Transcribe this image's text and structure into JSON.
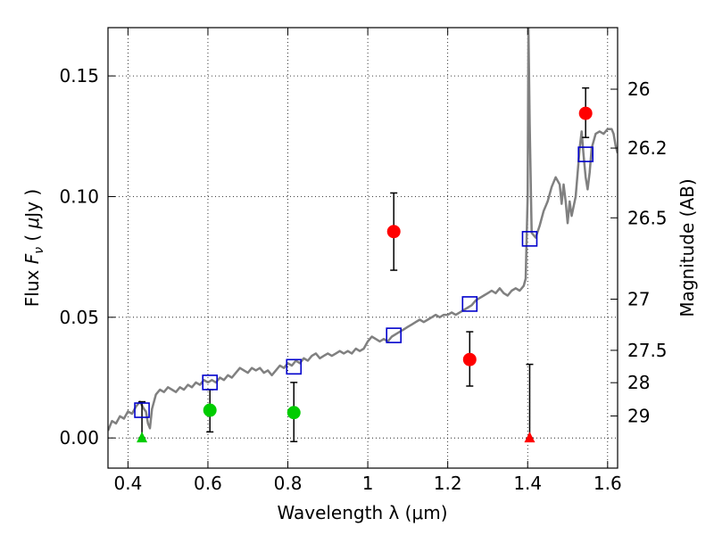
{
  "chart_data": {
    "type": "scatter",
    "xlabel": "Wavelength  λ (μm)",
    "ylabel_parts": [
      "Flux  ",
      "F",
      "ν",
      "  ( ",
      "μ",
      "Jy )"
    ],
    "y2label": "Magnitude (AB)",
    "xlim": [
      0.35,
      1.625
    ],
    "ylim": [
      -0.0125,
      0.17
    ],
    "grid": true,
    "x_ticks": [
      0.4,
      0.6,
      0.8,
      1.0,
      1.2,
      1.4,
      1.6
    ],
    "x_tick_labels": [
      "0.4",
      "0.6",
      "0.8",
      "1",
      "1.2",
      "1.4",
      "1.6"
    ],
    "y_ticks": [
      0.0,
      0.05,
      0.1,
      0.15
    ],
    "y_tick_labels": [
      "0.00",
      "0.05",
      "0.10",
      "0.15"
    ],
    "y2_ticks": [
      {
        "label": "26",
        "flux": 0.1445
      },
      {
        "label": "26.2",
        "flux": 0.1201
      },
      {
        "label": "26.5",
        "flux": 0.0912
      },
      {
        "label": "27",
        "flux": 0.0575
      },
      {
        "label": "27.5",
        "flux": 0.0363
      },
      {
        "label": "28",
        "flux": 0.0229
      },
      {
        "label": "29",
        "flux": 0.0091
      }
    ],
    "model_spectrum": {
      "color": "#808080",
      "points": [
        [
          0.35,
          0.003
        ],
        [
          0.36,
          0.007
        ],
        [
          0.37,
          0.006
        ],
        [
          0.38,
          0.009
        ],
        [
          0.39,
          0.008
        ],
        [
          0.4,
          0.011
        ],
        [
          0.41,
          0.01
        ],
        [
          0.42,
          0.013
        ],
        [
          0.43,
          0.015
        ],
        [
          0.44,
          0.012
        ],
        [
          0.445,
          0.011
        ],
        [
          0.45,
          0.006
        ],
        [
          0.455,
          0.004
        ],
        [
          0.46,
          0.012
        ],
        [
          0.47,
          0.018
        ],
        [
          0.48,
          0.02
        ],
        [
          0.49,
          0.019
        ],
        [
          0.5,
          0.021
        ],
        [
          0.51,
          0.02
        ],
        [
          0.52,
          0.019
        ],
        [
          0.53,
          0.021
        ],
        [
          0.54,
          0.02
        ],
        [
          0.55,
          0.022
        ],
        [
          0.56,
          0.021
        ],
        [
          0.57,
          0.023
        ],
        [
          0.58,
          0.022
        ],
        [
          0.59,
          0.024
        ],
        [
          0.6,
          0.023
        ],
        [
          0.61,
          0.024
        ],
        [
          0.62,
          0.023
        ],
        [
          0.63,
          0.025
        ],
        [
          0.64,
          0.024
        ],
        [
          0.65,
          0.026
        ],
        [
          0.66,
          0.025
        ],
        [
          0.67,
          0.027
        ],
        [
          0.68,
          0.029
        ],
        [
          0.69,
          0.028
        ],
        [
          0.7,
          0.027
        ],
        [
          0.71,
          0.029
        ],
        [
          0.72,
          0.028
        ],
        [
          0.73,
          0.029
        ],
        [
          0.74,
          0.027
        ],
        [
          0.75,
          0.028
        ],
        [
          0.76,
          0.026
        ],
        [
          0.77,
          0.028
        ],
        [
          0.78,
          0.03
        ],
        [
          0.79,
          0.029
        ],
        [
          0.8,
          0.031
        ],
        [
          0.81,
          0.03
        ],
        [
          0.82,
          0.032
        ],
        [
          0.83,
          0.031
        ],
        [
          0.84,
          0.033
        ],
        [
          0.85,
          0.032
        ],
        [
          0.86,
          0.034
        ],
        [
          0.87,
          0.035
        ],
        [
          0.88,
          0.033
        ],
        [
          0.89,
          0.034
        ],
        [
          0.9,
          0.035
        ],
        [
          0.91,
          0.034
        ],
        [
          0.92,
          0.035
        ],
        [
          0.93,
          0.036
        ],
        [
          0.94,
          0.035
        ],
        [
          0.95,
          0.036
        ],
        [
          0.96,
          0.035
        ],
        [
          0.97,
          0.037
        ],
        [
          0.98,
          0.036
        ],
        [
          0.99,
          0.037
        ],
        [
          1.0,
          0.04
        ],
        [
          1.01,
          0.042
        ],
        [
          1.02,
          0.041
        ],
        [
          1.03,
          0.04
        ],
        [
          1.04,
          0.041
        ],
        [
          1.05,
          0.04
        ],
        [
          1.06,
          0.042
        ],
        [
          1.07,
          0.043
        ],
        [
          1.08,
          0.044
        ],
        [
          1.09,
          0.045
        ],
        [
          1.1,
          0.046
        ],
        [
          1.11,
          0.047
        ],
        [
          1.12,
          0.048
        ],
        [
          1.13,
          0.049
        ],
        [
          1.14,
          0.048
        ],
        [
          1.15,
          0.049
        ],
        [
          1.16,
          0.05
        ],
        [
          1.17,
          0.051
        ],
        [
          1.18,
          0.05
        ],
        [
          1.19,
          0.051
        ],
        [
          1.2,
          0.051
        ],
        [
          1.21,
          0.052
        ],
        [
          1.22,
          0.051
        ],
        [
          1.23,
          0.052
        ],
        [
          1.24,
          0.053
        ],
        [
          1.25,
          0.054
        ],
        [
          1.26,
          0.055
        ],
        [
          1.27,
          0.057
        ],
        [
          1.28,
          0.058
        ],
        [
          1.29,
          0.059
        ],
        [
          1.3,
          0.06
        ],
        [
          1.31,
          0.061
        ],
        [
          1.32,
          0.06
        ],
        [
          1.33,
          0.062
        ],
        [
          1.34,
          0.06
        ],
        [
          1.35,
          0.059
        ],
        [
          1.36,
          0.061
        ],
        [
          1.37,
          0.062
        ],
        [
          1.38,
          0.061
        ],
        [
          1.39,
          0.063
        ],
        [
          1.395,
          0.066
        ],
        [
          1.4,
          0.1
        ],
        [
          1.402,
          0.17
        ],
        [
          1.405,
          0.13
        ],
        [
          1.41,
          0.085
        ],
        [
          1.42,
          0.083
        ],
        [
          1.43,
          0.088
        ],
        [
          1.44,
          0.094
        ],
        [
          1.45,
          0.098
        ],
        [
          1.46,
          0.104
        ],
        [
          1.47,
          0.108
        ],
        [
          1.48,
          0.105
        ],
        [
          1.485,
          0.097
        ],
        [
          1.49,
          0.105
        ],
        [
          1.495,
          0.098
        ],
        [
          1.5,
          0.089
        ],
        [
          1.505,
          0.098
        ],
        [
          1.51,
          0.092
        ],
        [
          1.52,
          0.1
        ],
        [
          1.53,
          0.12
        ],
        [
          1.535,
          0.127
        ],
        [
          1.54,
          0.117
        ],
        [
          1.545,
          0.108
        ],
        [
          1.55,
          0.103
        ],
        [
          1.555,
          0.11
        ],
        [
          1.56,
          0.12
        ],
        [
          1.57,
          0.126
        ],
        [
          1.58,
          0.127
        ],
        [
          1.59,
          0.126
        ],
        [
          1.6,
          0.128
        ],
        [
          1.61,
          0.128
        ],
        [
          1.615,
          0.126
        ],
        [
          1.62,
          0.121
        ],
        [
          1.625,
          0.118
        ]
      ]
    },
    "model_photometry": {
      "color": "#0000cc",
      "x": [
        0.435,
        0.605,
        0.815,
        1.065,
        1.255,
        1.405,
        1.545
      ],
      "y": [
        0.0115,
        0.023,
        0.0295,
        0.0425,
        0.0555,
        0.0825,
        0.1175
      ]
    },
    "detections": {
      "color": "#ff0000",
      "x": [
        1.065,
        1.255,
        1.545
      ],
      "y": [
        0.0855,
        0.0325,
        0.1345
      ],
      "yerr_low": [
        0.0695,
        0.0215,
        0.1245
      ],
      "yerr_high": [
        0.1015,
        0.044,
        0.145
      ]
    },
    "green_points": {
      "color": "#00cc00",
      "x": [
        0.605,
        0.815
      ],
      "y": [
        0.0115,
        0.0105
      ],
      "yerr_low": [
        0.0025,
        -0.0015
      ],
      "yerr_high": [
        0.02,
        0.023
      ]
    },
    "upper_limits": [
      {
        "x": 0.435,
        "y": 0.0,
        "err_high": 0.015,
        "color": "#00cc00"
      },
      {
        "x": 1.405,
        "y": 0.0,
        "err_high": 0.0305,
        "color": "#ff0000"
      }
    ]
  }
}
